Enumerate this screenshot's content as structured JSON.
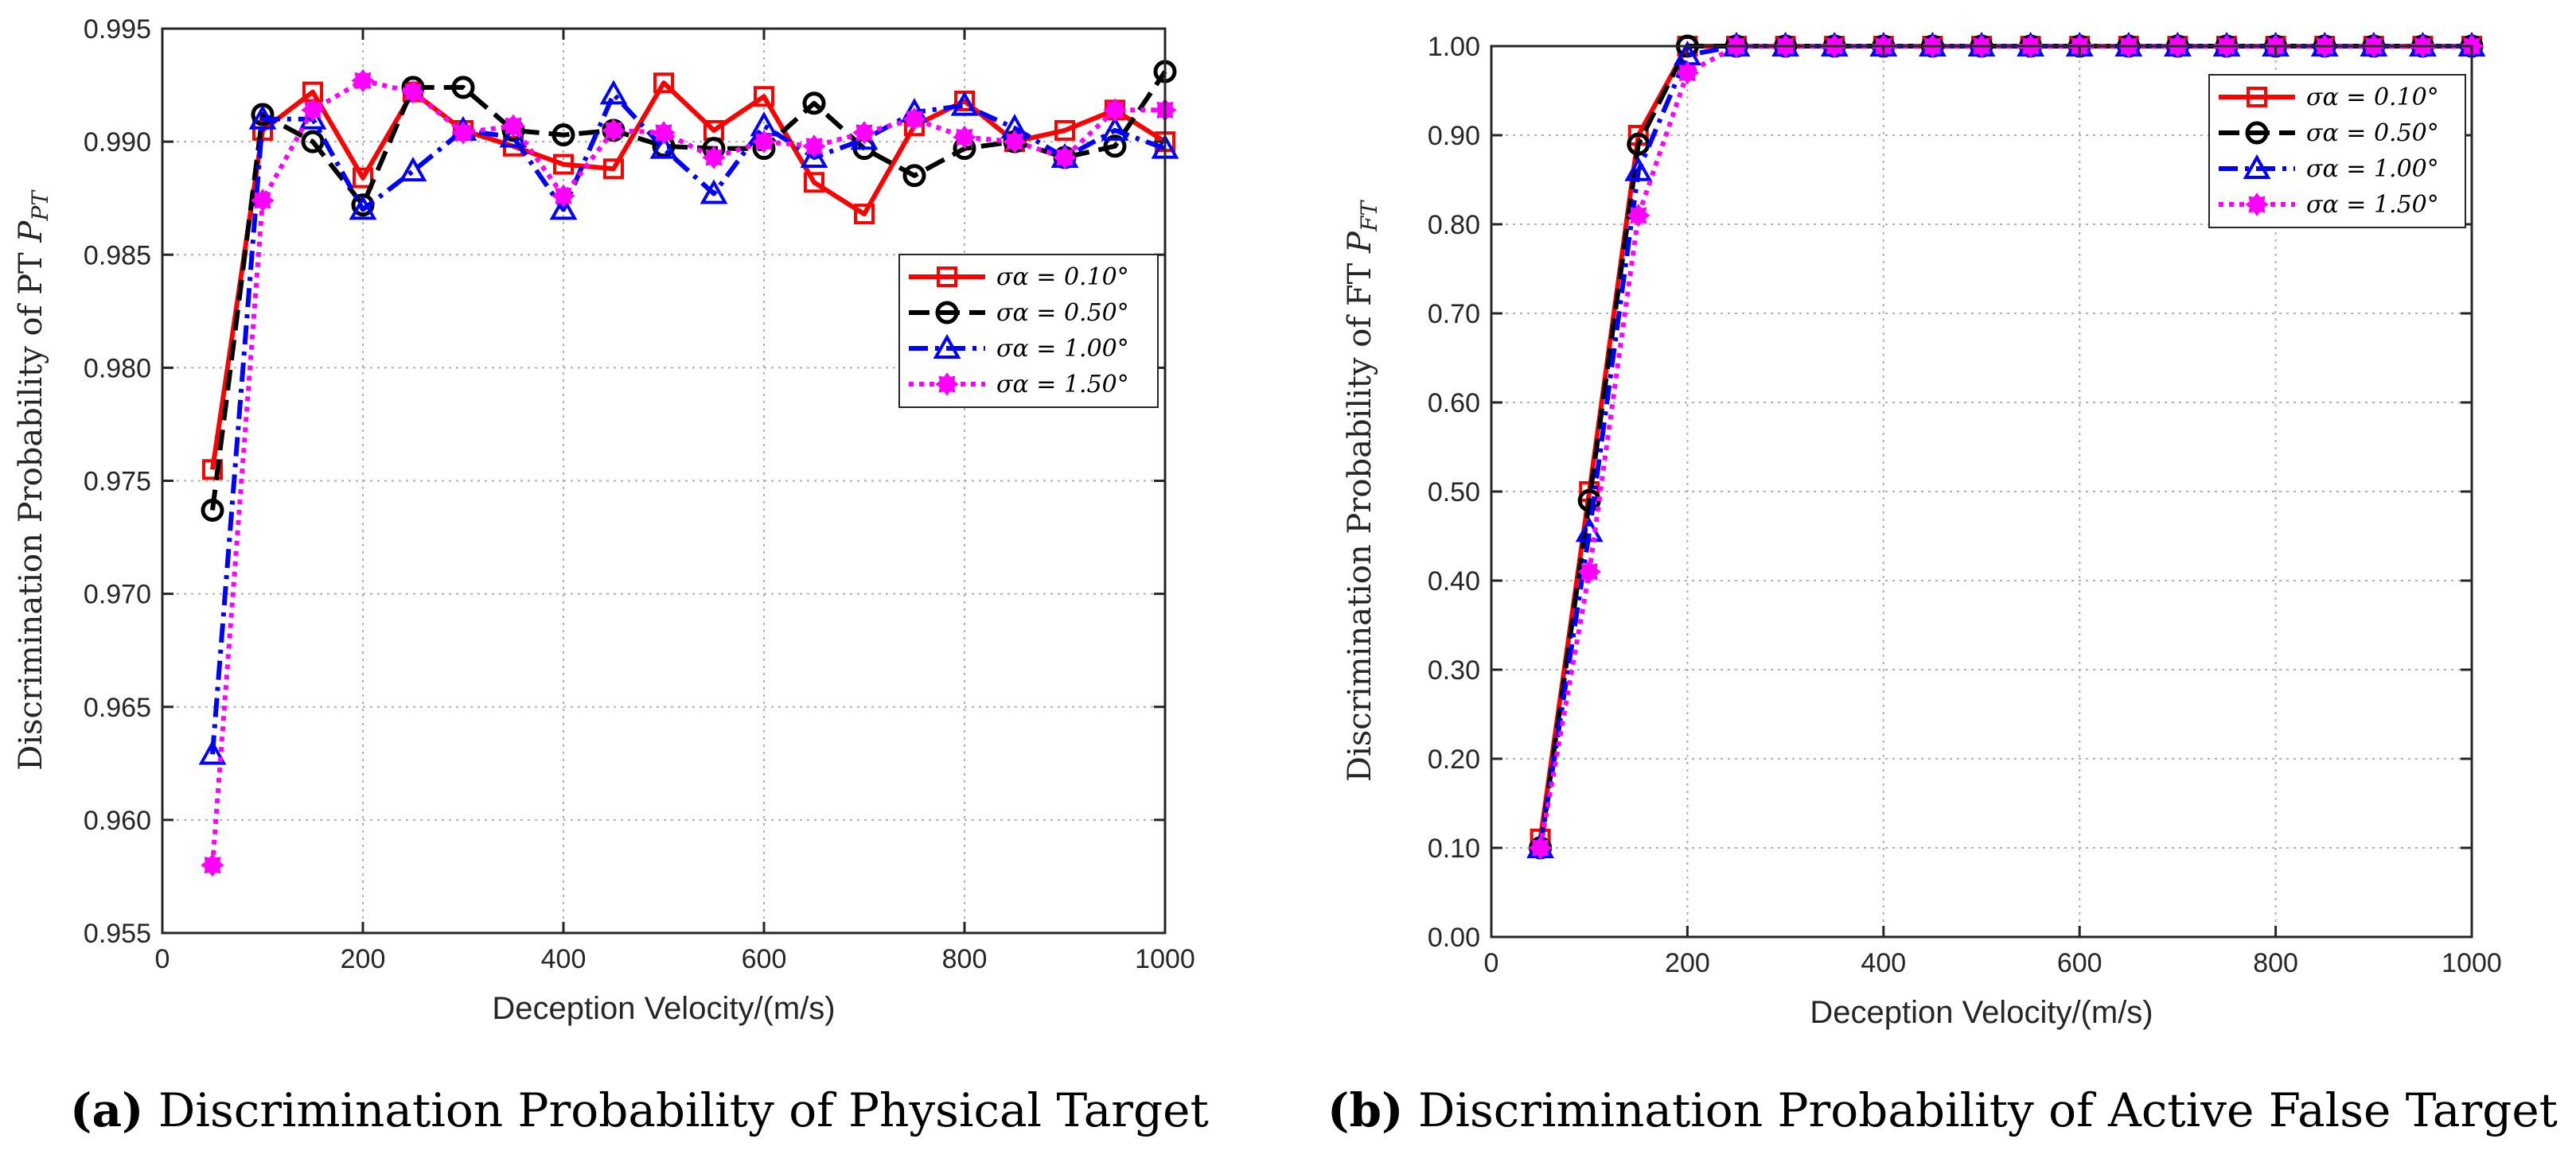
{
  "captions": {
    "a_tag": "(a)",
    "a_text": "Discrimination Probability of Physical Target",
    "b_tag": "(b)",
    "b_text": "Discrimination Probability of Active False Target"
  },
  "chart_data": [
    {
      "type": "line",
      "id": "a",
      "xlabel": "Deception Velocity/(m/s)",
      "ylabel": "Discrimination Probability of PT P_PT",
      "ylabel_text": "Discrimination Probability of PT ",
      "ylabel_sym": "P",
      "ylabel_sub": "PT",
      "xlim": [
        0,
        1000
      ],
      "ylim": [
        0.955,
        0.995
      ],
      "xticks": [
        "0",
        "200",
        "400",
        "600",
        "800",
        "1000"
      ],
      "xtick_values": [
        0,
        200,
        400,
        600,
        800,
        1000
      ],
      "yticks": [
        "0.955",
        "0.960",
        "0.965",
        "0.970",
        "0.975",
        "0.980",
        "0.985",
        "0.990",
        "0.995"
      ],
      "ytick_values": [
        0.955,
        0.96,
        0.965,
        0.97,
        0.975,
        0.98,
        0.985,
        0.99,
        0.995
      ],
      "grid": true,
      "legend_position": "right-middle",
      "x": [
        50,
        100,
        150,
        200,
        250,
        300,
        350,
        400,
        450,
        500,
        550,
        600,
        650,
        700,
        750,
        800,
        850,
        900,
        950,
        1000
      ],
      "series": [
        {
          "name": "σα = 0.10°",
          "color": "#ff0000",
          "dash": "solid",
          "marker": "square",
          "values": [
            0.9755,
            0.9905,
            0.9922,
            0.9884,
            0.9922,
            0.9905,
            0.9898,
            0.989,
            0.9888,
            0.9926,
            0.9905,
            0.992,
            0.9882,
            0.9868,
            0.9907,
            0.9918,
            0.99,
            0.9905,
            0.9914,
            0.99
          ]
        },
        {
          "name": "σα = 0.50°",
          "color": "#000000",
          "dash": "dashed",
          "marker": "circle",
          "values": [
            0.9737,
            0.9912,
            0.99,
            0.9872,
            0.9924,
            0.9924,
            0.9905,
            0.9903,
            0.9905,
            0.9898,
            0.9897,
            0.9897,
            0.9917,
            0.9897,
            0.9885,
            0.9897,
            0.99,
            0.9893,
            0.9898,
            0.9931
          ]
        },
        {
          "name": "σα = 1.00°",
          "color": "#0000ff",
          "dash": "dashdot",
          "marker": "triangle",
          "values": [
            0.9629,
            0.991,
            0.991,
            0.987,
            0.9887,
            0.9905,
            0.9902,
            0.987,
            0.9921,
            0.9897,
            0.9877,
            0.9907,
            0.9893,
            0.9901,
            0.9913,
            0.9916,
            0.9906,
            0.9893,
            0.9905,
            0.9897
          ]
        },
        {
          "name": "σα = 1.50°",
          "color": "#ff00ff",
          "dash": "dotted",
          "marker": "star",
          "values": [
            0.958,
            0.9874,
            0.9914,
            0.9927,
            0.9922,
            0.9904,
            0.9907,
            0.9876,
            0.9905,
            0.9904,
            0.9893,
            0.99,
            0.9898,
            0.9904,
            0.991,
            0.9902,
            0.99,
            0.9893,
            0.9914,
            0.9914
          ]
        }
      ]
    },
    {
      "type": "line",
      "id": "b",
      "xlabel": "Deception Velocity/(m/s)",
      "ylabel": "Discrimination Probability of FT P_FT",
      "ylabel_text": "Discrimination Probability of FT ",
      "ylabel_sym": "P",
      "ylabel_sub": "FT",
      "xlim": [
        0,
        1000
      ],
      "ylim": [
        0,
        1
      ],
      "xticks": [
        "0",
        "200",
        "400",
        "600",
        "800",
        "1000"
      ],
      "xtick_values": [
        0,
        200,
        400,
        600,
        800,
        1000
      ],
      "yticks": [
        "0.00",
        "0.10",
        "0.20",
        "0.30",
        "0.40",
        "0.50",
        "0.60",
        "0.70",
        "0.80",
        "0.90",
        "1.00"
      ],
      "ytick_values": [
        0,
        0.1,
        0.2,
        0.3,
        0.4,
        0.5,
        0.6,
        0.7,
        0.8,
        0.9,
        1.0
      ],
      "grid": true,
      "legend_position": "top-right",
      "x": [
        50,
        100,
        150,
        200,
        250,
        300,
        350,
        400,
        450,
        500,
        550,
        600,
        650,
        700,
        750,
        800,
        850,
        900,
        950,
        1000
      ],
      "series": [
        {
          "name": "σα = 0.10°",
          "color": "#ff0000",
          "dash": "solid",
          "marker": "square",
          "values": [
            0.11,
            0.5,
            0.9,
            1.0,
            1.0,
            1.0,
            1.0,
            1.0,
            1.0,
            1.0,
            1.0,
            1.0,
            1.0,
            1.0,
            1.0,
            1.0,
            1.0,
            1.0,
            1.0,
            1.0
          ]
        },
        {
          "name": "σα = 0.50°",
          "color": "#000000",
          "dash": "dashed",
          "marker": "circle",
          "values": [
            0.1,
            0.49,
            0.89,
            1.0,
            1.0,
            1.0,
            1.0,
            1.0,
            1.0,
            1.0,
            1.0,
            1.0,
            1.0,
            1.0,
            1.0,
            1.0,
            1.0,
            1.0,
            1.0,
            1.0
          ]
        },
        {
          "name": "σα = 1.00°",
          "color": "#0000ff",
          "dash": "dashdot",
          "marker": "triangle",
          "values": [
            0.1,
            0.455,
            0.86,
            0.99,
            1.0,
            1.0,
            1.0,
            1.0,
            1.0,
            1.0,
            1.0,
            1.0,
            1.0,
            1.0,
            1.0,
            1.0,
            1.0,
            1.0,
            1.0,
            1.0
          ]
        },
        {
          "name": "σα = 1.50°",
          "color": "#ff00ff",
          "dash": "dotted",
          "marker": "star",
          "values": [
            0.1,
            0.41,
            0.81,
            0.97,
            1.0,
            1.0,
            1.0,
            1.0,
            1.0,
            1.0,
            1.0,
            1.0,
            1.0,
            1.0,
            1.0,
            1.0,
            1.0,
            1.0,
            1.0,
            1.0
          ]
        }
      ]
    }
  ]
}
